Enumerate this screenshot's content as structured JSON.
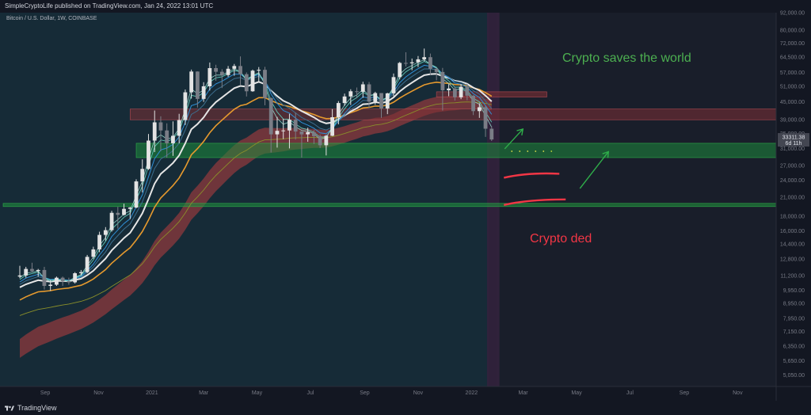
{
  "header": {
    "publisher_line": "SimpleCryptoLife published on TradingView.com, Jan 24, 2022 13:01 UTC"
  },
  "symbol_line": "Bitcoin / U.S. Dollar, 1W, COINBASE",
  "footer": {
    "brand": "TradingView"
  },
  "colors": {
    "background": "#131722",
    "highlight_bg": "#162b37",
    "future_bg": "#191e2a",
    "current_week": "#33223d",
    "candle_up": "#e3e3e3",
    "candle_down": "#7a7d86",
    "ema_white": "#e6e6e6",
    "ema_orange": "#e69a2e",
    "ema_olive": "#8a8f2a",
    "ema_blue": "#2f8fd6",
    "ema_teal": "#5fc9b8",
    "band_red": "#8d3a3e",
    "green_zone": "#1e8a3c",
    "green_line": "#2fae4a",
    "red_zone": "#7d2f35",
    "annotation_green": "#4caf50",
    "annotation_red": "#f23645",
    "price_label_bg": "#434651"
  },
  "chart_data": {
    "type": "candlestick",
    "title": "Bitcoin / U.S. Dollar, 1W, COINBASE",
    "y_scale": "log",
    "ylim": [
      4600,
      92000
    ],
    "x_ticks": [
      "Sep",
      "Nov",
      "2021",
      "Mar",
      "May",
      "Jul",
      "Sep",
      "Nov",
      "2022",
      "Mar",
      "May",
      "Jul",
      "Sep",
      "Nov"
    ],
    "y_ticks": [
      92000,
      80000,
      72000,
      64500,
      57000,
      51000,
      45000,
      39000,
      35000,
      31000,
      27000,
      24000,
      21000,
      18000,
      16000,
      14400,
      12800,
      11200,
      9950,
      8950,
      7950,
      7150,
      6350,
      5650,
      5050
    ],
    "last_price": "33311.38",
    "countdown": "6d 11h",
    "candles": [
      {
        "t": "2020-08-03",
        "o": 11100,
        "h": 12100,
        "l": 10950,
        "c": 11200
      },
      {
        "t": "2020-08-10",
        "o": 11200,
        "h": 12000,
        "l": 11000,
        "c": 11800
      },
      {
        "t": "2020-08-17",
        "o": 11800,
        "h": 12400,
        "l": 11500,
        "c": 11600
      },
      {
        "t": "2020-08-24",
        "o": 11600,
        "h": 11800,
        "l": 11100,
        "c": 11700
      },
      {
        "t": "2020-08-31",
        "o": 11700,
        "h": 12000,
        "l": 10000,
        "c": 10300
      },
      {
        "t": "2020-09-07",
        "o": 10300,
        "h": 10800,
        "l": 9900,
        "c": 10400
      },
      {
        "t": "2020-09-14",
        "o": 10400,
        "h": 11100,
        "l": 10300,
        "c": 11000
      },
      {
        "t": "2020-09-21",
        "o": 11000,
        "h": 11100,
        "l": 10300,
        "c": 10700
      },
      {
        "t": "2020-09-28",
        "o": 10700,
        "h": 11000,
        "l": 10400,
        "c": 10600
      },
      {
        "t": "2020-10-05",
        "o": 10600,
        "h": 11500,
        "l": 10500,
        "c": 11400
      },
      {
        "t": "2020-10-12",
        "o": 11400,
        "h": 11700,
        "l": 11200,
        "c": 11500
      },
      {
        "t": "2020-10-19",
        "o": 11500,
        "h": 13200,
        "l": 11400,
        "c": 13000
      },
      {
        "t": "2020-10-26",
        "o": 13000,
        "h": 14100,
        "l": 12800,
        "c": 13800
      },
      {
        "t": "2020-11-02",
        "o": 13800,
        "h": 15900,
        "l": 13500,
        "c": 15500
      },
      {
        "t": "2020-11-09",
        "o": 15500,
        "h": 16500,
        "l": 14800,
        "c": 16100
      },
      {
        "t": "2020-11-16",
        "o": 16100,
        "h": 18800,
        "l": 15900,
        "c": 18500
      },
      {
        "t": "2020-11-23",
        "o": 18500,
        "h": 19400,
        "l": 16300,
        "c": 18200
      },
      {
        "t": "2020-11-30",
        "o": 18200,
        "h": 19900,
        "l": 18100,
        "c": 19100
      },
      {
        "t": "2020-12-07",
        "o": 19100,
        "h": 19400,
        "l": 17600,
        "c": 19300
      },
      {
        "t": "2020-12-14",
        "o": 19300,
        "h": 24200,
        "l": 19200,
        "c": 23800
      },
      {
        "t": "2020-12-21",
        "o": 23800,
        "h": 28400,
        "l": 21800,
        "c": 26300
      },
      {
        "t": "2020-12-28",
        "o": 26300,
        "h": 34800,
        "l": 26100,
        "c": 33000
      },
      {
        "t": "2021-01-04",
        "o": 33000,
        "h": 42000,
        "l": 30100,
        "c": 38200
      },
      {
        "t": "2021-01-11",
        "o": 38200,
        "h": 40100,
        "l": 30300,
        "c": 35800
      },
      {
        "t": "2021-01-18",
        "o": 35800,
        "h": 37900,
        "l": 28800,
        "c": 32300
      },
      {
        "t": "2021-01-25",
        "o": 32300,
        "h": 38500,
        "l": 29200,
        "c": 34300
      },
      {
        "t": "2021-02-01",
        "o": 34300,
        "h": 40900,
        "l": 32300,
        "c": 38900
      },
      {
        "t": "2021-02-08",
        "o": 38900,
        "h": 49700,
        "l": 37400,
        "c": 48600
      },
      {
        "t": "2021-02-15",
        "o": 48600,
        "h": 58300,
        "l": 46200,
        "c": 57400
      },
      {
        "t": "2021-02-22",
        "o": 57400,
        "h": 57500,
        "l": 43000,
        "c": 46100
      },
      {
        "t": "2021-03-01",
        "o": 46100,
        "h": 52700,
        "l": 45000,
        "c": 51000
      },
      {
        "t": "2021-03-08",
        "o": 51000,
        "h": 61700,
        "l": 49300,
        "c": 59000
      },
      {
        "t": "2021-03-15",
        "o": 59000,
        "h": 60600,
        "l": 53300,
        "c": 57300
      },
      {
        "t": "2021-03-22",
        "o": 57300,
        "h": 58500,
        "l": 50300,
        "c": 55800
      },
      {
        "t": "2021-03-29",
        "o": 55800,
        "h": 60000,
        "l": 55000,
        "c": 58700
      },
      {
        "t": "2021-04-05",
        "o": 58700,
        "h": 61000,
        "l": 55500,
        "c": 60000
      },
      {
        "t": "2021-04-12",
        "o": 60000,
        "h": 64800,
        "l": 51300,
        "c": 56200
      },
      {
        "t": "2021-04-19",
        "o": 56200,
        "h": 57000,
        "l": 47000,
        "c": 49000
      },
      {
        "t": "2021-04-26",
        "o": 49000,
        "h": 58300,
        "l": 48800,
        "c": 57800
      },
      {
        "t": "2021-05-03",
        "o": 57800,
        "h": 59500,
        "l": 53000,
        "c": 58200
      },
      {
        "t": "2021-05-10",
        "o": 58200,
        "h": 59600,
        "l": 43800,
        "c": 46400
      },
      {
        "t": "2021-05-17",
        "o": 46400,
        "h": 46600,
        "l": 30000,
        "c": 34700
      },
      {
        "t": "2021-05-24",
        "o": 34700,
        "h": 39900,
        "l": 31200,
        "c": 35700
      },
      {
        "t": "2021-05-31",
        "o": 35700,
        "h": 39300,
        "l": 33400,
        "c": 35800
      },
      {
        "t": "2021-06-07",
        "o": 35800,
        "h": 40900,
        "l": 31000,
        "c": 39000
      },
      {
        "t": "2021-06-14",
        "o": 39000,
        "h": 41300,
        "l": 33300,
        "c": 35500
      },
      {
        "t": "2021-06-21",
        "o": 35500,
        "h": 35500,
        "l": 28800,
        "c": 34700
      },
      {
        "t": "2021-06-28",
        "o": 34700,
        "h": 36600,
        "l": 32700,
        "c": 35300
      },
      {
        "t": "2021-07-05",
        "o": 35300,
        "h": 35900,
        "l": 32100,
        "c": 34200
      },
      {
        "t": "2021-07-12",
        "o": 34200,
        "h": 34600,
        "l": 31100,
        "c": 31800
      },
      {
        "t": "2021-07-19",
        "o": 31800,
        "h": 34500,
        "l": 29300,
        "c": 34300
      },
      {
        "t": "2021-07-26",
        "o": 34300,
        "h": 42500,
        "l": 34200,
        "c": 39800
      },
      {
        "t": "2021-08-02",
        "o": 39800,
        "h": 45300,
        "l": 37600,
        "c": 44600
      },
      {
        "t": "2021-08-09",
        "o": 44600,
        "h": 48100,
        "l": 43600,
        "c": 47000
      },
      {
        "t": "2021-08-16",
        "o": 47000,
        "h": 49800,
        "l": 43900,
        "c": 49000
      },
      {
        "t": "2021-08-23",
        "o": 49000,
        "h": 50500,
        "l": 46300,
        "c": 48800
      },
      {
        "t": "2021-08-30",
        "o": 48800,
        "h": 52900,
        "l": 46500,
        "c": 51800
      },
      {
        "t": "2021-09-06",
        "o": 51800,
        "h": 52800,
        "l": 42800,
        "c": 45100
      },
      {
        "t": "2021-09-13",
        "o": 45100,
        "h": 48800,
        "l": 44000,
        "c": 48300
      },
      {
        "t": "2021-09-20",
        "o": 48300,
        "h": 48300,
        "l": 39600,
        "c": 42700
      },
      {
        "t": "2021-09-27",
        "o": 42700,
        "h": 48400,
        "l": 40800,
        "c": 48200
      },
      {
        "t": "2021-10-04",
        "o": 48200,
        "h": 56500,
        "l": 47100,
        "c": 54900
      },
      {
        "t": "2021-10-11",
        "o": 54900,
        "h": 62000,
        "l": 53900,
        "c": 61500
      },
      {
        "t": "2021-10-18",
        "o": 61500,
        "h": 67000,
        "l": 59800,
        "c": 61300
      },
      {
        "t": "2021-10-25",
        "o": 61300,
        "h": 63700,
        "l": 58000,
        "c": 61800
      },
      {
        "t": "2021-11-01",
        "o": 61800,
        "h": 65000,
        "l": 59500,
        "c": 63300
      },
      {
        "t": "2021-11-08",
        "o": 63300,
        "h": 69000,
        "l": 62300,
        "c": 64400
      },
      {
        "t": "2021-11-15",
        "o": 64400,
        "h": 66300,
        "l": 55700,
        "c": 58700
      },
      {
        "t": "2021-11-22",
        "o": 58700,
        "h": 59200,
        "l": 53500,
        "c": 57200
      },
      {
        "t": "2021-11-29",
        "o": 57200,
        "h": 59100,
        "l": 42000,
        "c": 49400
      },
      {
        "t": "2021-12-06",
        "o": 49400,
        "h": 51900,
        "l": 47100,
        "c": 50100
      },
      {
        "t": "2021-12-13",
        "o": 50100,
        "h": 50900,
        "l": 45500,
        "c": 46700
      },
      {
        "t": "2021-12-20",
        "o": 46700,
        "h": 51900,
        "l": 46000,
        "c": 50800
      },
      {
        "t": "2021-12-27",
        "o": 50800,
        "h": 52000,
        "l": 45600,
        "c": 47300
      },
      {
        "t": "2022-01-03",
        "o": 47300,
        "h": 47500,
        "l": 40500,
        "c": 41800
      },
      {
        "t": "2022-01-10",
        "o": 41800,
        "h": 44500,
        "l": 39600,
        "c": 43100
      },
      {
        "t": "2022-01-17",
        "o": 43100,
        "h": 43500,
        "l": 34000,
        "c": 36300
      },
      {
        "t": "2022-01-24",
        "o": 36300,
        "h": 37000,
        "l": 32900,
        "c": 33300
      }
    ],
    "zones": [
      {
        "name": "red-resistance-zone",
        "from": "2020-12-07",
        "to": "2022-12-31",
        "low": 39000,
        "high": 42500
      },
      {
        "name": "small-red-box",
        "from": "2021-11-22",
        "to": "2022-03-28",
        "low": 46800,
        "high": 48800
      },
      {
        "name": "green-support-zone",
        "from": "2020-12-14",
        "to": "2022-12-31",
        "low": 28800,
        "high": 32300
      }
    ],
    "horizontal_lines": [
      {
        "name": "green-support-line",
        "y": 19700
      }
    ],
    "annotations": [
      {
        "name": "label-saves-world",
        "text": "Crypto saves the world",
        "color": "green"
      },
      {
        "name": "label-ded",
        "text": "Crypto ded",
        "color": "red"
      }
    ]
  }
}
